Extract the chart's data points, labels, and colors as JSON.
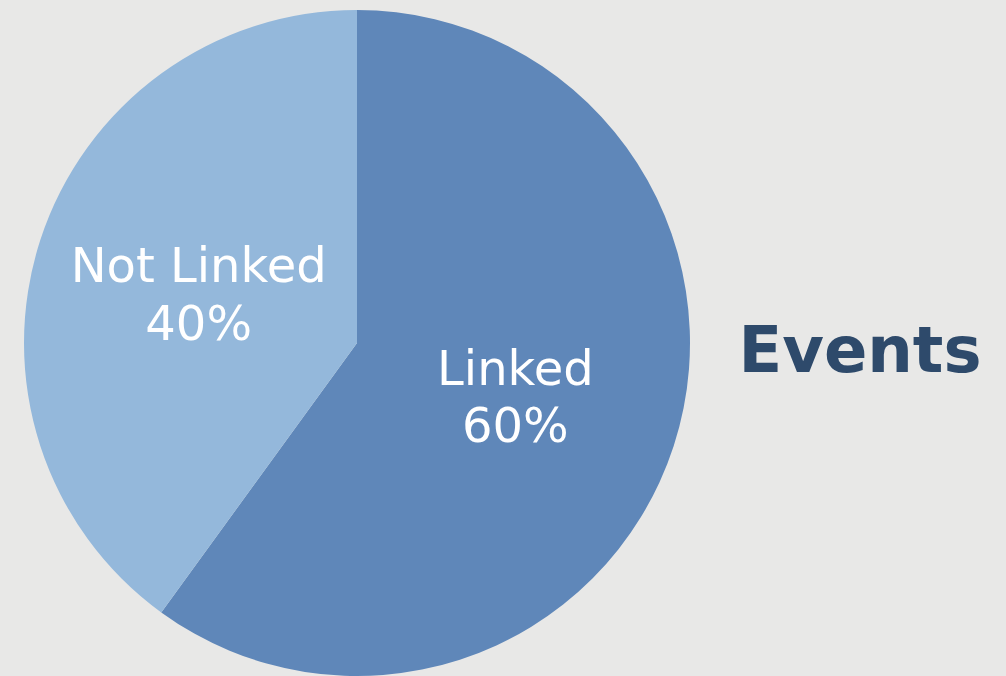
{
  "chart_data": {
    "type": "pie",
    "title": "Events",
    "categories": [
      "Linked",
      "Not Linked"
    ],
    "values": [
      60,
      40
    ],
    "colors": [
      "#5f87b9",
      "#94b8db"
    ],
    "value_labels": [
      "60%",
      "40%"
    ],
    "legend": false
  }
}
